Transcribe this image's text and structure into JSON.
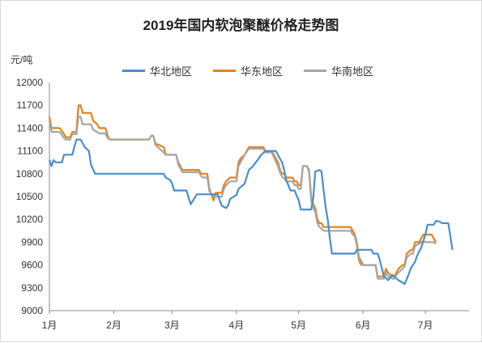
{
  "chart_data": {
    "type": "line",
    "title": "2019年国内软泡聚醚价格走势图",
    "ylabel": "元/吨",
    "xlabel": "",
    "ylim": [
      9000,
      12000
    ],
    "yticks": [
      9000,
      9300,
      9600,
      9900,
      10200,
      10500,
      10800,
      11100,
      11400,
      11700,
      12000
    ],
    "xlim": [
      0,
      202
    ],
    "xticks": [
      {
        "label": "1月",
        "x": 0
      },
      {
        "label": "2月",
        "x": 31
      },
      {
        "label": "3月",
        "x": 59
      },
      {
        "label": "4月",
        "x": 90
      },
      {
        "label": "5月",
        "x": 120
      },
      {
        "label": "6月",
        "x": 151
      },
      {
        "label": "7月",
        "x": 181
      }
    ],
    "grid": false,
    "legend_position": "top",
    "series": [
      {
        "name": "华北地区",
        "color": "#4a8ec9",
        "points": [
          [
            0,
            10980
          ],
          [
            1,
            10900
          ],
          [
            2,
            10980
          ],
          [
            3,
            10950
          ],
          [
            6,
            10950
          ],
          [
            7,
            11050
          ],
          [
            11,
            11050
          ],
          [
            13,
            11250
          ],
          [
            15,
            11250
          ],
          [
            17,
            11150
          ],
          [
            19,
            11100
          ],
          [
            20,
            10920
          ],
          [
            22,
            10800
          ],
          [
            39,
            10800
          ],
          [
            40,
            10800
          ],
          [
            55,
            10800
          ],
          [
            56,
            10750
          ],
          [
            58,
            10720
          ],
          [
            59,
            10680
          ],
          [
            60,
            10580
          ],
          [
            66,
            10580
          ],
          [
            68,
            10400
          ],
          [
            71,
            10530
          ],
          [
            81,
            10530
          ],
          [
            82,
            10450
          ],
          [
            83,
            10380
          ],
          [
            85,
            10350
          ],
          [
            86,
            10380
          ],
          [
            87,
            10470
          ],
          [
            90,
            10520
          ],
          [
            91,
            10600
          ],
          [
            94,
            10670
          ],
          [
            96,
            10850
          ],
          [
            98,
            10900
          ],
          [
            102,
            11050
          ],
          [
            104,
            11100
          ],
          [
            109,
            11100
          ],
          [
            111,
            11000
          ],
          [
            112,
            10950
          ],
          [
            113,
            10850
          ],
          [
            114,
            10720
          ],
          [
            116,
            10580
          ],
          [
            118,
            10580
          ],
          [
            120,
            10450
          ],
          [
            121,
            10330
          ],
          [
            126,
            10330
          ],
          [
            127,
            10480
          ],
          [
            128,
            10830
          ],
          [
            130,
            10850
          ],
          [
            131,
            10830
          ],
          [
            132,
            10580
          ],
          [
            133,
            10350
          ],
          [
            134,
            10200
          ],
          [
            135,
            9950
          ],
          [
            136,
            9750
          ],
          [
            147,
            9750
          ],
          [
            148,
            9800
          ],
          [
            155,
            9800
          ],
          [
            156,
            9750
          ],
          [
            158,
            9750
          ],
          [
            159,
            9670
          ],
          [
            160,
            9560
          ],
          [
            161,
            9450
          ],
          [
            162,
            9430
          ],
          [
            163,
            9400
          ],
          [
            165,
            9470
          ],
          [
            166,
            9450
          ],
          [
            168,
            9400
          ],
          [
            170,
            9370
          ],
          [
            171,
            9350
          ],
          [
            173,
            9480
          ],
          [
            174,
            9560
          ],
          [
            176,
            9640
          ],
          [
            177,
            9720
          ],
          [
            178,
            9780
          ],
          [
            179,
            9830
          ],
          [
            181,
            10000
          ],
          [
            182,
            10130
          ],
          [
            185,
            10130
          ],
          [
            186,
            10180
          ],
          [
            188,
            10170
          ],
          [
            189,
            10150
          ],
          [
            192,
            10150
          ],
          [
            193,
            9980
          ],
          [
            194,
            9800
          ]
        ]
      },
      {
        "name": "华东地区",
        "color": "#e8801a",
        "points": [
          [
            0,
            11550
          ],
          [
            1,
            11400
          ],
          [
            5,
            11400
          ],
          [
            7,
            11320
          ],
          [
            8,
            11280
          ],
          [
            10,
            11280
          ],
          [
            11,
            11350
          ],
          [
            13,
            11350
          ],
          [
            14,
            11700
          ],
          [
            15,
            11700
          ],
          [
            16,
            11600
          ],
          [
            20,
            11600
          ],
          [
            21,
            11500
          ],
          [
            23,
            11450
          ],
          [
            24,
            11400
          ],
          [
            27,
            11400
          ],
          [
            28,
            11300
          ],
          [
            29,
            11250
          ],
          [
            48,
            11250
          ],
          [
            49,
            11300
          ],
          [
            50,
            11300
          ],
          [
            51,
            11200
          ],
          [
            55,
            11150
          ],
          [
            56,
            11050
          ],
          [
            61,
            11050
          ],
          [
            62,
            10950
          ],
          [
            64,
            10850
          ],
          [
            65,
            10850
          ],
          [
            72,
            10850
          ],
          [
            73,
            10800
          ],
          [
            74,
            10800
          ],
          [
            76,
            10800
          ],
          [
            77,
            10600
          ],
          [
            79,
            10450
          ],
          [
            80,
            10550
          ],
          [
            83,
            10550
          ],
          [
            84,
            10650
          ],
          [
            85,
            10700
          ],
          [
            87,
            10750
          ],
          [
            90,
            10750
          ],
          [
            91,
            10950
          ],
          [
            92,
            11000
          ],
          [
            94,
            11050
          ],
          [
            96,
            11150
          ],
          [
            103,
            11150
          ],
          [
            104,
            11100
          ],
          [
            107,
            11100
          ],
          [
            108,
            11050
          ],
          [
            110,
            10950
          ],
          [
            111,
            10850
          ],
          [
            112,
            10800
          ],
          [
            113,
            10800
          ],
          [
            114,
            10750
          ],
          [
            115,
            10750
          ],
          [
            117,
            10750
          ],
          [
            118,
            10700
          ],
          [
            119,
            10700
          ],
          [
            120,
            10650
          ],
          [
            121,
            10650
          ],
          [
            122,
            10900
          ],
          [
            124,
            10900
          ],
          [
            125,
            10850
          ],
          [
            126,
            10500
          ],
          [
            127,
            10400
          ],
          [
            128,
            10350
          ],
          [
            129,
            10200
          ],
          [
            130,
            10150
          ],
          [
            131,
            10150
          ],
          [
            132,
            10100
          ],
          [
            140,
            10100
          ],
          [
            145,
            10100
          ],
          [
            146,
            10050
          ],
          [
            147,
            10000
          ],
          [
            148,
            9900
          ],
          [
            149,
            9700
          ],
          [
            150,
            9650
          ],
          [
            151,
            9600
          ],
          [
            152,
            9600
          ],
          [
            157,
            9600
          ],
          [
            158,
            9450
          ],
          [
            161,
            9450
          ],
          [
            162,
            9550
          ],
          [
            163,
            9500
          ],
          [
            165,
            9450
          ],
          [
            166,
            9450
          ],
          [
            167,
            9500
          ],
          [
            168,
            9550
          ],
          [
            170,
            9600
          ],
          [
            171,
            9600
          ],
          [
            172,
            9750
          ],
          [
            174,
            9800
          ],
          [
            175,
            9800
          ],
          [
            176,
            9900
          ],
          [
            178,
            9900
          ],
          [
            179,
            9950
          ],
          [
            180,
            10000
          ],
          [
            181,
            10000
          ],
          [
            183,
            10000
          ],
          [
            184,
            10000
          ],
          [
            185,
            9950
          ],
          [
            186,
            9900
          ]
        ]
      },
      {
        "name": "华南地区",
        "color": "#a5a5a5",
        "points": [
          [
            0,
            11500
          ],
          [
            1,
            11350
          ],
          [
            5,
            11350
          ],
          [
            7,
            11270
          ],
          [
            8,
            11250
          ],
          [
            10,
            11250
          ],
          [
            11,
            11320
          ],
          [
            13,
            11320
          ],
          [
            14,
            11550
          ],
          [
            15,
            11550
          ],
          [
            16,
            11450
          ],
          [
            20,
            11450
          ],
          [
            21,
            11380
          ],
          [
            23,
            11350
          ],
          [
            24,
            11330
          ],
          [
            27,
            11330
          ],
          [
            28,
            11270
          ],
          [
            29,
            11250
          ],
          [
            48,
            11250
          ],
          [
            49,
            11300
          ],
          [
            50,
            11300
          ],
          [
            51,
            11180
          ],
          [
            55,
            11080
          ],
          [
            56,
            11050
          ],
          [
            61,
            11050
          ],
          [
            62,
            10920
          ],
          [
            64,
            10820
          ],
          [
            65,
            10820
          ],
          [
            72,
            10820
          ],
          [
            73,
            10770
          ],
          [
            74,
            10750
          ],
          [
            76,
            10750
          ],
          [
            77,
            10570
          ],
          [
            79,
            10500
          ],
          [
            80,
            10500
          ],
          [
            83,
            10500
          ],
          [
            84,
            10600
          ],
          [
            85,
            10650
          ],
          [
            87,
            10700
          ],
          [
            90,
            10700
          ],
          [
            91,
            10900
          ],
          [
            92,
            10950
          ],
          [
            94,
            11050
          ],
          [
            96,
            11130
          ],
          [
            103,
            11130
          ],
          [
            104,
            11080
          ],
          [
            107,
            11080
          ],
          [
            108,
            11020
          ],
          [
            110,
            10900
          ],
          [
            111,
            10820
          ],
          [
            112,
            10760
          ],
          [
            113,
            10740
          ],
          [
            114,
            10700
          ],
          [
            115,
            10700
          ],
          [
            117,
            10700
          ],
          [
            118,
            10650
          ],
          [
            119,
            10650
          ],
          [
            120,
            10600
          ],
          [
            121,
            10600
          ],
          [
            122,
            10900
          ],
          [
            124,
            10900
          ],
          [
            125,
            10820
          ],
          [
            126,
            10450
          ],
          [
            127,
            10350
          ],
          [
            128,
            10300
          ],
          [
            129,
            10150
          ],
          [
            130,
            10100
          ],
          [
            131,
            10080
          ],
          [
            132,
            10050
          ],
          [
            140,
            10050
          ],
          [
            145,
            10050
          ],
          [
            146,
            10000
          ],
          [
            147,
            9980
          ],
          [
            148,
            9850
          ],
          [
            149,
            9650
          ],
          [
            150,
            9600
          ],
          [
            151,
            9600
          ],
          [
            152,
            9600
          ],
          [
            157,
            9600
          ],
          [
            158,
            9420
          ],
          [
            161,
            9420
          ],
          [
            162,
            9500
          ],
          [
            163,
            9450
          ],
          [
            165,
            9420
          ],
          [
            166,
            9420
          ],
          [
            167,
            9470
          ],
          [
            168,
            9500
          ],
          [
            170,
            9550
          ],
          [
            171,
            9580
          ],
          [
            172,
            9700
          ],
          [
            174,
            9750
          ],
          [
            175,
            9750
          ],
          [
            176,
            9850
          ],
          [
            178,
            9880
          ],
          [
            179,
            9900
          ],
          [
            180,
            9920
          ],
          [
            181,
            9900
          ],
          [
            183,
            9900
          ],
          [
            184,
            9900
          ],
          [
            185,
            9900
          ],
          [
            186,
            9880
          ]
        ]
      }
    ]
  }
}
